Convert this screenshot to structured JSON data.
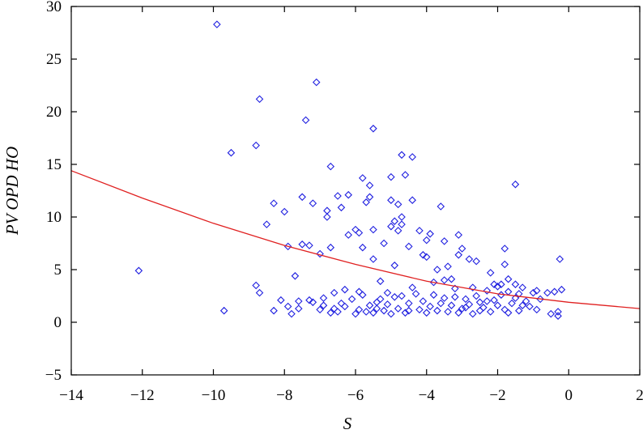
{
  "chart_data": {
    "type": "scatter",
    "title": "",
    "xlabel": "S",
    "ylabel": "PV OPD HO",
    "xlim": [
      -14,
      2
    ],
    "ylim": [
      -5,
      30
    ],
    "xticks": [
      -14,
      -12,
      -10,
      -8,
      -6,
      -4,
      -2,
      0,
      2
    ],
    "yticks": [
      -5,
      0,
      5,
      10,
      15,
      20,
      25,
      30
    ],
    "xtick_labels": [
      "−14",
      "−12",
      "−10",
      "−8",
      "−6",
      "−4",
      "−2",
      "0",
      "2"
    ],
    "ytick_labels": [
      "−5",
      "0",
      "5",
      "10",
      "15",
      "20",
      "25",
      "30"
    ],
    "grid": false,
    "legend": "none",
    "colors": {
      "points": "#2020e0",
      "fit": "#e02020"
    },
    "series": [
      {
        "type": "scatter",
        "marker": "diamond",
        "points": [
          [
            -12.1,
            4.9
          ],
          [
            -9.9,
            28.3
          ],
          [
            -9.7,
            1.1
          ],
          [
            -9.5,
            16.1
          ],
          [
            -8.8,
            16.8
          ],
          [
            -8.7,
            21.2
          ],
          [
            -8.8,
            3.5
          ],
          [
            -8.7,
            2.8
          ],
          [
            -8.5,
            9.3
          ],
          [
            -8.3,
            11.3
          ],
          [
            -8.3,
            1.1
          ],
          [
            -8.1,
            2.1
          ],
          [
            -8.0,
            10.5
          ],
          [
            -7.9,
            7.2
          ],
          [
            -7.8,
            0.8
          ],
          [
            -7.7,
            4.4
          ],
          [
            -7.6,
            1.3
          ],
          [
            -7.5,
            11.9
          ],
          [
            -7.5,
            7.4
          ],
          [
            -7.4,
            19.2
          ],
          [
            -7.3,
            7.3
          ],
          [
            -7.2,
            11.3
          ],
          [
            -7.1,
            22.8
          ],
          [
            -7.0,
            6.5
          ],
          [
            -6.9,
            2.3
          ],
          [
            -6.8,
            10.0
          ],
          [
            -6.8,
            10.6
          ],
          [
            -6.7,
            14.8
          ],
          [
            -6.7,
            7.1
          ],
          [
            -6.6,
            2.8
          ],
          [
            -6.5,
            12.0
          ],
          [
            -6.4,
            10.9
          ],
          [
            -6.3,
            3.1
          ],
          [
            -6.2,
            12.1
          ],
          [
            -6.2,
            8.3
          ],
          [
            -6.0,
            8.8
          ],
          [
            -5.9,
            8.5
          ],
          [
            -5.9,
            2.9
          ],
          [
            -5.8,
            13.7
          ],
          [
            -5.8,
            7.1
          ],
          [
            -5.7,
            11.4
          ],
          [
            -5.6,
            13.0
          ],
          [
            -5.6,
            11.9
          ],
          [
            -5.5,
            18.4
          ],
          [
            -5.5,
            8.8
          ],
          [
            -5.5,
            6.0
          ],
          [
            -5.4,
            1.9
          ],
          [
            -5.3,
            3.9
          ],
          [
            -5.2,
            7.5
          ],
          [
            -5.1,
            2.8
          ],
          [
            -5.0,
            13.8
          ],
          [
            -5.0,
            11.6
          ],
          [
            -5.0,
            9.1
          ],
          [
            -4.9,
            9.6
          ],
          [
            -4.9,
            5.4
          ],
          [
            -4.8,
            8.7
          ],
          [
            -4.8,
            11.2
          ],
          [
            -4.7,
            15.9
          ],
          [
            -4.7,
            10.0
          ],
          [
            -4.7,
            9.3
          ],
          [
            -4.6,
            14.0
          ],
          [
            -4.5,
            7.2
          ],
          [
            -4.5,
            1.1
          ],
          [
            -4.4,
            15.7
          ],
          [
            -4.4,
            11.6
          ],
          [
            -4.4,
            3.3
          ],
          [
            -4.2,
            8.7
          ],
          [
            -4.1,
            6.4
          ],
          [
            -4.0,
            6.2
          ],
          [
            -4.0,
            7.8
          ],
          [
            -3.9,
            8.4
          ],
          [
            -3.8,
            3.8
          ],
          [
            -3.7,
            5.0
          ],
          [
            -3.6,
            11.0
          ],
          [
            -3.5,
            7.7
          ],
          [
            -3.5,
            4.0
          ],
          [
            -3.4,
            5.3
          ],
          [
            -3.3,
            4.1
          ],
          [
            -3.2,
            3.2
          ],
          [
            -3.1,
            8.3
          ],
          [
            -3.1,
            6.4
          ],
          [
            -3.0,
            7.0
          ],
          [
            -2.9,
            1.4
          ],
          [
            -2.8,
            6.0
          ],
          [
            -2.7,
            3.3
          ],
          [
            -2.6,
            5.8
          ],
          [
            -2.5,
            1.1
          ],
          [
            -2.3,
            3.0
          ],
          [
            -2.2,
            4.7
          ],
          [
            -2.1,
            2.1
          ],
          [
            -2.0,
            3.4
          ],
          [
            -1.9,
            3.6
          ],
          [
            -1.8,
            7.0
          ],
          [
            -1.8,
            5.5
          ],
          [
            -1.7,
            4.1
          ],
          [
            -1.7,
            0.9
          ],
          [
            -1.5,
            13.1
          ],
          [
            -1.5,
            3.6
          ],
          [
            -1.4,
            2.7
          ],
          [
            -1.3,
            1.6
          ],
          [
            -1.0,
            2.8
          ],
          [
            -0.9,
            1.2
          ],
          [
            -0.6,
            2.8
          ],
          [
            -0.5,
            0.8
          ],
          [
            -0.4,
            2.9
          ],
          [
            -0.3,
            1.0
          ],
          [
            -0.3,
            0.6
          ],
          [
            -0.25,
            6.0
          ],
          [
            -0.2,
            3.1
          ],
          [
            -7.9,
            1.5
          ],
          [
            -7.6,
            2.0
          ],
          [
            -7.3,
            2.1
          ],
          [
            -7.2,
            1.9
          ],
          [
            -7.0,
            1.2
          ],
          [
            -6.9,
            1.6
          ],
          [
            -6.7,
            0.9
          ],
          [
            -6.6,
            1.3
          ],
          [
            -6.5,
            1.0
          ],
          [
            -6.4,
            1.8
          ],
          [
            -6.3,
            1.5
          ],
          [
            -6.1,
            2.2
          ],
          [
            -6.0,
            0.8
          ],
          [
            -5.9,
            1.2
          ],
          [
            -5.8,
            2.6
          ],
          [
            -5.7,
            1.0
          ],
          [
            -5.6,
            1.6
          ],
          [
            -5.5,
            0.9
          ],
          [
            -5.4,
            1.3
          ],
          [
            -5.3,
            2.2
          ],
          [
            -5.2,
            1.1
          ],
          [
            -5.1,
            1.7
          ],
          [
            -5.0,
            0.8
          ],
          [
            -4.9,
            2.4
          ],
          [
            -4.8,
            1.3
          ],
          [
            -4.7,
            2.5
          ],
          [
            -4.6,
            0.9
          ],
          [
            -4.5,
            1.8
          ],
          [
            -4.3,
            2.7
          ],
          [
            -4.2,
            1.2
          ],
          [
            -4.1,
            2.0
          ],
          [
            -4.0,
            0.9
          ],
          [
            -3.9,
            1.5
          ],
          [
            -3.8,
            2.6
          ],
          [
            -3.7,
            1.1
          ],
          [
            -3.6,
            1.8
          ],
          [
            -3.5,
            2.3
          ],
          [
            -3.4,
            1.0
          ],
          [
            -3.3,
            1.6
          ],
          [
            -3.2,
            2.4
          ],
          [
            -3.1,
            0.9
          ],
          [
            -3.0,
            1.3
          ],
          [
            -2.9,
            2.2
          ],
          [
            -2.8,
            1.7
          ],
          [
            -2.7,
            0.8
          ],
          [
            -2.6,
            2.5
          ],
          [
            -2.5,
            1.9
          ],
          [
            -2.4,
            1.4
          ],
          [
            -2.3,
            2.0
          ],
          [
            -2.2,
            1.0
          ],
          [
            -2.1,
            3.6
          ],
          [
            -2.0,
            1.6
          ],
          [
            -1.9,
            2.6
          ],
          [
            -1.8,
            1.2
          ],
          [
            -1.7,
            2.9
          ],
          [
            -1.6,
            1.8
          ],
          [
            -1.5,
            2.3
          ],
          [
            -1.4,
            1.1
          ],
          [
            -1.3,
            3.3
          ],
          [
            -1.2,
            2.0
          ],
          [
            -1.1,
            1.5
          ],
          [
            -0.9,
            3.0
          ],
          [
            -0.8,
            2.2
          ]
        ]
      },
      {
        "type": "line",
        "fit": "exponential",
        "points": [
          [
            -14,
            14.4
          ],
          [
            -12,
            11.8
          ],
          [
            -10,
            9.4
          ],
          [
            -8,
            7.3
          ],
          [
            -6,
            5.5
          ],
          [
            -4,
            3.9
          ],
          [
            -2,
            2.7
          ],
          [
            0,
            1.9
          ],
          [
            2,
            1.3
          ]
        ]
      }
    ]
  }
}
